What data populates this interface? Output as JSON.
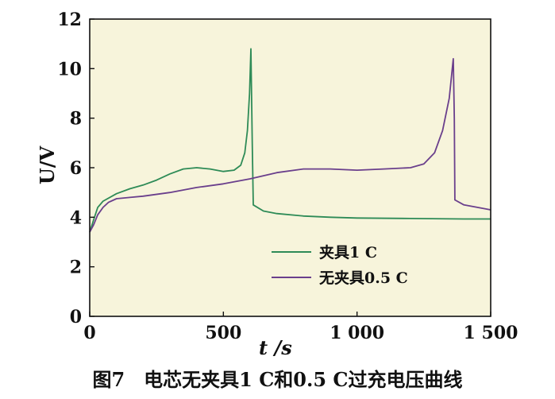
{
  "caption": "图7　电芯无夹具1 C和0.5 C过充电压曲线",
  "chart_data": {
    "type": "line",
    "xlabel": "t /s",
    "ylabel": "U/V",
    "xlim": [
      0,
      1500
    ],
    "ylim": [
      0,
      12
    ],
    "xticks": [
      0,
      500,
      1000,
      1500
    ],
    "xtick_labels": [
      "0",
      "500",
      "1 000",
      "1 500"
    ],
    "yticks": [
      0,
      2,
      4,
      6,
      8,
      10,
      12
    ],
    "ytick_labels": [
      "0",
      "2",
      "4",
      "6",
      "8",
      "10",
      "12"
    ],
    "grid": false,
    "background": "#f7f4db",
    "legend_position": "lower-right",
    "series": [
      {
        "name": "夹具1 C",
        "color": "#2e8b57",
        "points": [
          [
            0,
            3.4
          ],
          [
            15,
            3.9
          ],
          [
            30,
            4.4
          ],
          [
            50,
            4.65
          ],
          [
            100,
            4.95
          ],
          [
            150,
            5.15
          ],
          [
            200,
            5.3
          ],
          [
            250,
            5.5
          ],
          [
            300,
            5.75
          ],
          [
            350,
            5.95
          ],
          [
            400,
            6.0
          ],
          [
            450,
            5.95
          ],
          [
            500,
            5.85
          ],
          [
            540,
            5.9
          ],
          [
            565,
            6.1
          ],
          [
            580,
            6.6
          ],
          [
            590,
            7.5
          ],
          [
            598,
            9.0
          ],
          [
            603,
            10.8
          ],
          [
            608,
            7.0
          ],
          [
            612,
            4.5
          ],
          [
            650,
            4.25
          ],
          [
            700,
            4.15
          ],
          [
            800,
            4.05
          ],
          [
            900,
            4.0
          ],
          [
            1000,
            3.97
          ],
          [
            1200,
            3.95
          ],
          [
            1400,
            3.93
          ],
          [
            1500,
            3.93
          ]
        ]
      },
      {
        "name": "无夹具0.5 C",
        "color": "#6a3f8c",
        "points": [
          [
            0,
            3.4
          ],
          [
            15,
            3.7
          ],
          [
            30,
            4.1
          ],
          [
            50,
            4.4
          ],
          [
            70,
            4.6
          ],
          [
            100,
            4.75
          ],
          [
            150,
            4.8
          ],
          [
            200,
            4.85
          ],
          [
            300,
            5.0
          ],
          [
            400,
            5.2
          ],
          [
            500,
            5.35
          ],
          [
            600,
            5.55
          ],
          [
            700,
            5.8
          ],
          [
            800,
            5.95
          ],
          [
            900,
            5.95
          ],
          [
            1000,
            5.9
          ],
          [
            1100,
            5.95
          ],
          [
            1200,
            6.0
          ],
          [
            1250,
            6.15
          ],
          [
            1290,
            6.6
          ],
          [
            1320,
            7.5
          ],
          [
            1345,
            8.8
          ],
          [
            1360,
            10.4
          ],
          [
            1364,
            8.0
          ],
          [
            1366,
            4.7
          ],
          [
            1400,
            4.5
          ],
          [
            1450,
            4.4
          ],
          [
            1500,
            4.3
          ]
        ]
      }
    ]
  }
}
